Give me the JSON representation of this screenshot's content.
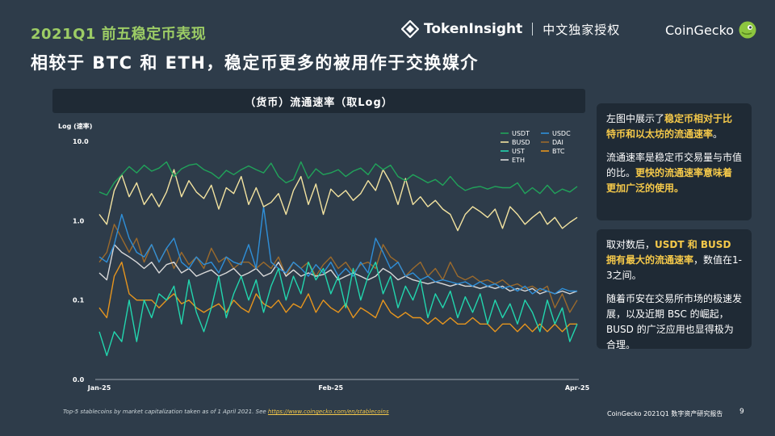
{
  "header": {
    "tag": "2021Q1 前五稳定币表现",
    "tokeninsight_name": "TokenInsight",
    "tokeninsight_cn": "中文独家授权",
    "coingecko_name": "CoinGecko",
    "headline": "相较于 BTC 和 ETH，稳定币更多的被用作于交换媒介"
  },
  "chart_title": "（货币）流通速率（取Log）",
  "side_cards": [
    {
      "p1_a": "左图中展示了",
      "p1_hl": "稳定币相对于比特币和以太坊的流通速率",
      "p1_b": "。",
      "p2_a": "流通速率是稳定币交易量与市值的比。",
      "p2_hl": "更快的流通速率意味着更加广泛的使用。"
    },
    {
      "p1_a": "取对数后，",
      "p1_hl": "USDT 和 BUSD 拥有最大的流通速率",
      "p1_b": "，数值在1-3之间。",
      "p2_a": "随着币安在交易所市场的极速发展，以及近期 BSC 的崛起，BUSD 的广泛应用也显得极为合理。"
    }
  ],
  "footnote": {
    "text": "Top-5 stablecoins by market capitalization taken as of 1 April 2021. See ",
    "link": "https://www.coingecko.com/en/stablecoins"
  },
  "footer": {
    "report": "CoinGecko 2021Q1 数字资产研究报告",
    "page": "9"
  },
  "colors": {
    "USDT": "#21a35a",
    "USDC": "#2f8fd8",
    "BUSD": "#f3e3a0",
    "DAI": "#9b6a2c",
    "UST": "#22d6ae",
    "BTC": "#e6951e",
    "ETH": "#d9d9d9"
  },
  "chart_data": {
    "type": "line",
    "title": "（货币）流通速率（取Log）",
    "ylabel": "Log (速率)",
    "y_scale": "log",
    "ylim": [
      0.01,
      10
    ],
    "y_ticks": [
      {
        "value": 10,
        "label": "10.0"
      },
      {
        "value": 1,
        "label": "1.0"
      },
      {
        "value": 0.1,
        "label": "0.1"
      },
      {
        "value": 0.01,
        "label": "0.0"
      }
    ],
    "x_ticks": [
      {
        "value": 0,
        "label": "Jan-25"
      },
      {
        "value": 31,
        "label": "Feb-25"
      },
      {
        "value": 64,
        "label": "Apr-25"
      }
    ],
    "xlim": [
      0,
      64
    ],
    "grid": false,
    "legend_position": "top-right",
    "series": [
      {
        "name": "USDT",
        "values": [
          2.3,
          2.1,
          3.0,
          3.8,
          4.8,
          4.0,
          5.0,
          4.2,
          4.6,
          5.5,
          3.6,
          4.5,
          5.0,
          5.2,
          4.4,
          4.0,
          3.4,
          4.3,
          3.8,
          4.4,
          4.9,
          4.4,
          4.0,
          5.3,
          3.6,
          3.0,
          3.3,
          5.5,
          3.4,
          4.5,
          3.8,
          4.0,
          4.4,
          3.6,
          4.2,
          4.6,
          3.8,
          5.2,
          4.4,
          5.0,
          3.6,
          3.2,
          3.8,
          3.4,
          3.0,
          3.3,
          2.8,
          3.6,
          2.8,
          2.4,
          2.6,
          2.7,
          2.5,
          2.7,
          2.6,
          2.6,
          3.0,
          2.2,
          2.6,
          2.2,
          2.8,
          2.2,
          2.5,
          2.3,
          2.7
        ]
      },
      {
        "name": "BUSD",
        "values": [
          1.2,
          0.9,
          2.4,
          3.8,
          2.0,
          3.0,
          1.6,
          2.2,
          1.5,
          2.3,
          4.4,
          2.0,
          3.2,
          2.3,
          1.9,
          2.8,
          1.4,
          2.6,
          2.2,
          3.6,
          1.6,
          2.6,
          1.5,
          1.7,
          2.2,
          1.2,
          2.4,
          3.6,
          1.6,
          2.9,
          1.2,
          2.5,
          2.0,
          2.4,
          1.8,
          2.2,
          3.2,
          2.4,
          4.4,
          3.0,
          1.6,
          3.4,
          1.6,
          2.0,
          1.5,
          1.8,
          1.4,
          1.2,
          0.75,
          1.2,
          1.5,
          1.3,
          1.1,
          1.4,
          0.8,
          1.5,
          1.2,
          0.9,
          1.1,
          1.3,
          0.9,
          1.1,
          0.8,
          0.95,
          1.1
        ]
      },
      {
        "name": "UST",
        "values": [
          0.04,
          0.02,
          0.04,
          0.03,
          0.1,
          0.03,
          0.1,
          0.06,
          0.12,
          0.1,
          0.15,
          0.05,
          0.18,
          0.07,
          0.04,
          0.08,
          0.2,
          0.06,
          0.12,
          0.2,
          0.1,
          0.18,
          0.07,
          0.15,
          0.25,
          0.1,
          0.2,
          0.12,
          0.3,
          0.18,
          0.25,
          0.12,
          0.2,
          0.08,
          0.25,
          0.1,
          0.2,
          0.3,
          0.12,
          0.2,
          0.08,
          0.15,
          0.1,
          0.18,
          0.06,
          0.12,
          0.08,
          0.13,
          0.06,
          0.11,
          0.07,
          0.12,
          0.05,
          0.1,
          0.06,
          0.09,
          0.05,
          0.1,
          0.07,
          0.04,
          0.1,
          0.05,
          0.08,
          0.03,
          0.05
        ]
      },
      {
        "name": "USDC",
        "values": [
          0.35,
          0.3,
          0.5,
          1.2,
          0.6,
          0.4,
          0.35,
          0.5,
          0.3,
          0.45,
          0.6,
          0.3,
          0.25,
          0.35,
          0.28,
          0.3,
          0.22,
          0.35,
          0.3,
          0.28,
          0.5,
          0.25,
          1.5,
          0.3,
          0.25,
          0.22,
          0.3,
          0.25,
          0.2,
          0.28,
          0.22,
          0.3,
          0.2,
          0.25,
          0.2,
          0.3,
          0.22,
          0.6,
          0.4,
          0.25,
          0.3,
          0.2,
          0.22,
          0.18,
          0.2,
          0.17,
          0.18,
          0.17,
          0.16,
          0.17,
          0.15,
          0.17,
          0.15,
          0.16,
          0.14,
          0.15,
          0.13,
          0.15,
          0.12,
          0.14,
          0.13,
          0.12,
          0.14,
          0.13,
          0.13
        ]
      },
      {
        "name": "DAI",
        "values": [
          0.3,
          0.4,
          0.9,
          0.6,
          0.4,
          0.6,
          0.3,
          0.5,
          0.3,
          0.45,
          0.25,
          0.4,
          0.28,
          0.35,
          0.25,
          0.45,
          0.3,
          0.35,
          0.25,
          0.3,
          0.3,
          0.25,
          0.3,
          0.25,
          0.35,
          0.2,
          0.3,
          0.25,
          0.3,
          0.2,
          0.28,
          0.35,
          0.25,
          0.3,
          0.22,
          0.28,
          0.3,
          0.25,
          0.5,
          0.35,
          0.3,
          0.2,
          0.25,
          0.3,
          0.2,
          0.25,
          0.18,
          0.3,
          0.2,
          0.18,
          0.2,
          0.17,
          0.18,
          0.16,
          0.18,
          0.15,
          0.16,
          0.14,
          0.15,
          0.13,
          0.15,
          0.08,
          0.12,
          0.07,
          0.1
        ]
      },
      {
        "name": "BTC",
        "values": [
          0.08,
          0.06,
          0.2,
          0.3,
          0.12,
          0.1,
          0.1,
          0.1,
          0.08,
          0.1,
          0.12,
          0.09,
          0.1,
          0.08,
          0.07,
          0.08,
          0.09,
          0.07,
          0.1,
          0.08,
          0.07,
          0.12,
          0.09,
          0.08,
          0.1,
          0.07,
          0.09,
          0.08,
          0.12,
          0.07,
          0.1,
          0.08,
          0.07,
          0.09,
          0.06,
          0.08,
          0.07,
          0.06,
          0.1,
          0.07,
          0.06,
          0.07,
          0.06,
          0.06,
          0.05,
          0.06,
          0.05,
          0.06,
          0.05,
          0.05,
          0.06,
          0.05,
          0.05,
          0.04,
          0.05,
          0.05,
          0.04,
          0.05,
          0.04,
          0.05,
          0.04,
          0.05,
          0.04,
          0.05,
          0.05
        ]
      },
      {
        "name": "ETH",
        "values": [
          0.22,
          0.18,
          0.5,
          0.4,
          0.35,
          0.3,
          0.25,
          0.3,
          0.22,
          0.28,
          0.3,
          0.22,
          0.25,
          0.2,
          0.22,
          0.24,
          0.2,
          0.22,
          0.25,
          0.2,
          0.22,
          0.25,
          0.2,
          0.22,
          0.3,
          0.2,
          0.24,
          0.2,
          0.22,
          0.2,
          0.21,
          0.24,
          0.18,
          0.2,
          0.22,
          0.2,
          0.18,
          0.2,
          0.25,
          0.22,
          0.18,
          0.2,
          0.18,
          0.17,
          0.16,
          0.17,
          0.16,
          0.15,
          0.16,
          0.15,
          0.15,
          0.14,
          0.15,
          0.14,
          0.15,
          0.13,
          0.14,
          0.13,
          0.14,
          0.12,
          0.13,
          0.12,
          0.13,
          0.12,
          0.13
        ]
      }
    ],
    "legend": [
      {
        "name": "USDT"
      },
      {
        "name": "USDC"
      },
      {
        "name": "BUSD"
      },
      {
        "name": "DAI"
      },
      {
        "name": "UST"
      },
      {
        "name": "BTC"
      },
      {
        "name": "ETH"
      }
    ]
  }
}
